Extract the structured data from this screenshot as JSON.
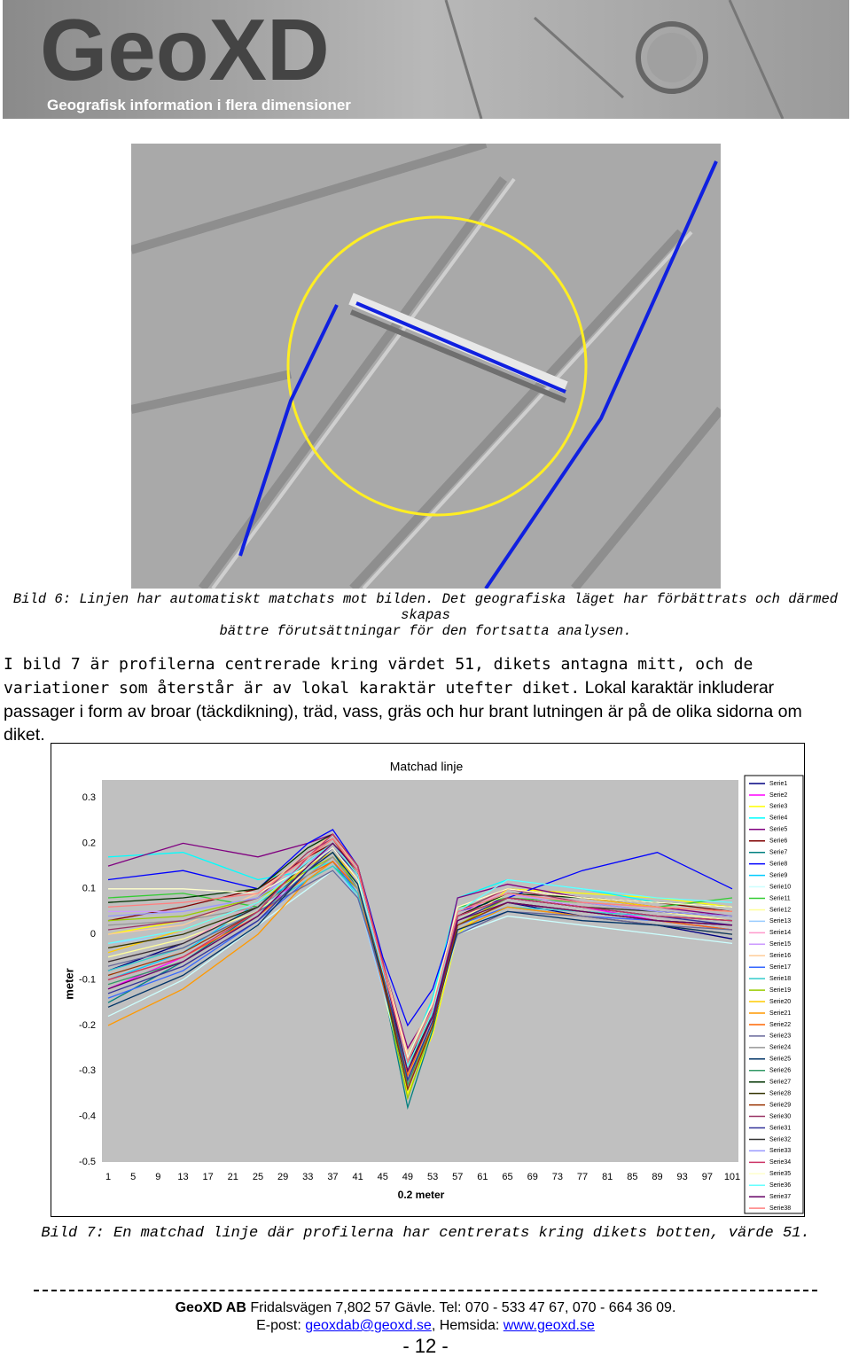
{
  "header": {
    "logo": "GeoXD",
    "tagline": "Geografisk information i flera dimensioner"
  },
  "caption1": [
    "Bild 6: Linjen har automatiskt matchats mot bilden. Det geografiska läget har förbättrats och därmed skapas",
    "bättre förutsättningar för den fortsatta analysen."
  ],
  "paragraph": {
    "part1": "I bild 7 är profilerna centrerade kring värdet 51, dikets antagna mitt, och de variationer som återstår är av lokal karaktär utefter diket.",
    "part2": "Lokal karaktär inkluderar passager i form av broar (täckdikning), träd, vass, gräs och hur brant lutningen är på de olika sidorna om diket."
  },
  "chart_data": {
    "type": "line",
    "title": "Matchad linje",
    "y_label": "meter",
    "x_label": "0.2 meter",
    "x": [
      1,
      13,
      25,
      33,
      37,
      41,
      45,
      49,
      53,
      57,
      65,
      77,
      89,
      101
    ],
    "xlim": [
      1,
      101
    ],
    "xticks": [
      1,
      5,
      9,
      13,
      17,
      21,
      25,
      29,
      33,
      37,
      41,
      45,
      49,
      53,
      57,
      61,
      65,
      69,
      73,
      77,
      81,
      85,
      89,
      93,
      97,
      101
    ],
    "ylim": [
      -0.5,
      0.3
    ],
    "yticks": [
      0.3,
      0.2,
      0.1,
      0,
      -0.1,
      -0.2,
      -0.3,
      -0.4,
      -0.5
    ],
    "grid": false,
    "background": "#c0c0c0",
    "legend": "right",
    "series": [
      {
        "name": "Serie1",
        "color": "#000080",
        "values": [
          -0.08,
          -0.02,
          0.06,
          0.16,
          0.19,
          0.12,
          -0.08,
          -0.28,
          -0.18,
          0.02,
          0.07,
          0.04,
          0.02,
          -0.01
        ]
      },
      {
        "name": "Serie2",
        "color": "#ff00ff",
        "values": [
          -0.12,
          -0.05,
          0.04,
          0.14,
          0.17,
          0.1,
          -0.1,
          -0.33,
          -0.2,
          0.05,
          0.09,
          0.06,
          0.03,
          0.01
        ]
      },
      {
        "name": "Serie3",
        "color": "#ffff00",
        "values": [
          0.0,
          0.03,
          0.08,
          0.15,
          0.18,
          0.1,
          -0.12,
          -0.35,
          -0.22,
          0.0,
          0.1,
          0.09,
          0.08,
          0.06
        ]
      },
      {
        "name": "Serie4",
        "color": "#00ffff",
        "values": [
          0.17,
          0.18,
          0.12,
          0.14,
          0.16,
          0.08,
          -0.1,
          -0.27,
          -0.14,
          0.08,
          0.12,
          0.1,
          0.07,
          0.05
        ]
      },
      {
        "name": "Serie5",
        "color": "#800080",
        "values": [
          0.15,
          0.2,
          0.17,
          0.2,
          0.22,
          0.14,
          -0.06,
          -0.25,
          -0.16,
          0.08,
          0.11,
          0.08,
          0.06,
          0.04
        ]
      },
      {
        "name": "Serie6",
        "color": "#800000",
        "values": [
          0.03,
          0.06,
          0.1,
          0.17,
          0.2,
          0.13,
          -0.09,
          -0.32,
          -0.19,
          0.06,
          0.1,
          0.08,
          0.07,
          0.05
        ]
      },
      {
        "name": "Serie7",
        "color": "#008080",
        "values": [
          -0.15,
          -0.06,
          0.05,
          0.15,
          0.18,
          0.1,
          -0.11,
          -0.38,
          -0.21,
          0.02,
          0.07,
          0.05,
          0.03,
          0.02
        ]
      },
      {
        "name": "Serie8",
        "color": "#0000ff",
        "values": [
          0.12,
          0.14,
          0.1,
          0.2,
          0.23,
          0.15,
          -0.05,
          -0.2,
          -0.12,
          0.05,
          0.08,
          0.14,
          0.18,
          0.1
        ]
      },
      {
        "name": "Serie9",
        "color": "#00ccff",
        "values": [
          -0.1,
          -0.04,
          0.07,
          0.13,
          0.16,
          0.1,
          -0.09,
          -0.3,
          -0.18,
          0.04,
          0.08,
          0.06,
          0.04,
          0.03
        ]
      },
      {
        "name": "Serie10",
        "color": "#ccffff",
        "values": [
          -0.18,
          -0.1,
          0.02,
          0.1,
          0.14,
          0.08,
          -0.12,
          -0.34,
          -0.2,
          0.0,
          0.04,
          0.02,
          0.0,
          -0.02
        ]
      },
      {
        "name": "Serie11",
        "color": "#33cc33",
        "values": [
          0.08,
          0.09,
          0.06,
          0.12,
          0.15,
          0.1,
          -0.08,
          -0.28,
          -0.16,
          0.06,
          0.08,
          0.07,
          0.06,
          0.08
        ]
      },
      {
        "name": "Serie12",
        "color": "#ffff99",
        "values": [
          -0.05,
          -0.01,
          0.05,
          0.14,
          0.17,
          0.11,
          -0.1,
          -0.31,
          -0.18,
          0.03,
          0.09,
          0.07,
          0.05,
          0.03
        ]
      },
      {
        "name": "Serie13",
        "color": "#99ccff",
        "values": [
          -0.02,
          0.0,
          0.06,
          0.12,
          0.15,
          0.08,
          -0.12,
          -0.3,
          -0.19,
          0.0,
          0.06,
          0.05,
          0.04,
          0.02
        ]
      },
      {
        "name": "Serie14",
        "color": "#ff99cc",
        "values": [
          -0.06,
          -0.02,
          0.07,
          0.16,
          0.19,
          0.12,
          -0.07,
          -0.27,
          -0.15,
          0.04,
          0.1,
          0.07,
          0.05,
          0.04
        ]
      },
      {
        "name": "Serie15",
        "color": "#cc99ff",
        "values": [
          0.05,
          0.05,
          0.08,
          0.15,
          0.2,
          0.13,
          -0.08,
          -0.29,
          -0.17,
          0.05,
          0.09,
          0.06,
          0.04,
          0.03
        ]
      },
      {
        "name": "Serie16",
        "color": "#ffcc99",
        "values": [
          0.0,
          0.02,
          0.09,
          0.18,
          0.22,
          0.14,
          -0.06,
          -0.26,
          -0.15,
          0.06,
          0.1,
          0.07,
          0.06,
          0.05
        ]
      },
      {
        "name": "Serie17",
        "color": "#3366ff",
        "values": [
          -0.14,
          -0.08,
          0.03,
          0.12,
          0.16,
          0.09,
          -0.11,
          -0.32,
          -0.19,
          0.02,
          0.06,
          0.04,
          0.03,
          0.01
        ]
      },
      {
        "name": "Serie18",
        "color": "#33cccc",
        "values": [
          -0.08,
          -0.03,
          0.05,
          0.12,
          0.15,
          0.09,
          -0.1,
          -0.3,
          -0.17,
          0.01,
          0.06,
          0.05,
          0.04,
          0.03
        ]
      },
      {
        "name": "Serie19",
        "color": "#99cc00",
        "values": [
          0.03,
          0.04,
          0.08,
          0.14,
          0.17,
          0.11,
          -0.1,
          -0.36,
          -0.2,
          0.02,
          0.08,
          0.06,
          0.05,
          0.04
        ]
      },
      {
        "name": "Serie20",
        "color": "#ffcc00",
        "values": [
          -0.04,
          0.01,
          0.07,
          0.15,
          0.18,
          0.12,
          -0.09,
          -0.29,
          -0.17,
          0.05,
          0.1,
          0.08,
          0.06,
          0.05
        ]
      },
      {
        "name": "Serie21",
        "color": "#ff9900",
        "values": [
          -0.2,
          -0.12,
          0.0,
          0.12,
          0.16,
          0.1,
          -0.1,
          -0.33,
          -0.2,
          0.01,
          0.06,
          0.04,
          0.02,
          0.0
        ]
      },
      {
        "name": "Serie22",
        "color": "#ff6600",
        "values": [
          -0.1,
          -0.05,
          0.04,
          0.13,
          0.16,
          0.1,
          -0.11,
          -0.31,
          -0.18,
          0.02,
          0.07,
          0.05,
          0.03,
          0.01
        ]
      },
      {
        "name": "Serie23",
        "color": "#666699",
        "values": [
          -0.07,
          -0.03,
          0.05,
          0.11,
          0.14,
          0.08,
          -0.1,
          -0.29,
          -0.17,
          0.0,
          0.05,
          0.04,
          0.02,
          0.01
        ]
      },
      {
        "name": "Serie24",
        "color": "#969696",
        "values": [
          0.02,
          0.03,
          0.06,
          0.13,
          0.17,
          0.1,
          -0.09,
          -0.27,
          -0.16,
          0.03,
          0.08,
          0.06,
          0.05,
          0.04
        ]
      },
      {
        "name": "Serie25",
        "color": "#003366",
        "values": [
          -0.16,
          -0.09,
          0.02,
          0.14,
          0.18,
          0.11,
          -0.1,
          -0.34,
          -0.2,
          0.01,
          0.05,
          0.03,
          0.02,
          0.0
        ]
      },
      {
        "name": "Serie26",
        "color": "#339966",
        "values": [
          -0.11,
          -0.06,
          0.04,
          0.15,
          0.19,
          0.12,
          -0.09,
          -0.33,
          -0.19,
          0.02,
          0.07,
          0.05,
          0.03,
          0.02
        ]
      },
      {
        "name": "Serie27",
        "color": "#003300",
        "values": [
          0.07,
          0.08,
          0.1,
          0.19,
          0.22,
          0.15,
          -0.06,
          -0.3,
          -0.18,
          0.04,
          0.09,
          0.08,
          0.07,
          0.06
        ]
      },
      {
        "name": "Serie28",
        "color": "#333300",
        "values": [
          -0.03,
          0.0,
          0.06,
          0.16,
          0.2,
          0.13,
          -0.08,
          -0.3,
          -0.17,
          0.03,
          0.08,
          0.06,
          0.04,
          0.03
        ]
      },
      {
        "name": "Serie29",
        "color": "#993300",
        "values": [
          -0.09,
          -0.04,
          0.05,
          0.17,
          0.21,
          0.13,
          -0.09,
          -0.34,
          -0.2,
          0.02,
          0.07,
          0.05,
          0.03,
          0.02
        ]
      },
      {
        "name": "Serie30",
        "color": "#993366",
        "values": [
          0.01,
          0.03,
          0.08,
          0.18,
          0.21,
          0.14,
          -0.07,
          -0.28,
          -0.16,
          0.05,
          0.1,
          0.07,
          0.05,
          0.04
        ]
      },
      {
        "name": "Serie31",
        "color": "#333399",
        "values": [
          -0.13,
          -0.07,
          0.03,
          0.14,
          0.19,
          0.13,
          -0.08,
          -0.32,
          -0.19,
          0.03,
          0.08,
          0.06,
          0.04,
          0.02
        ]
      },
      {
        "name": "Serie32",
        "color": "#333333",
        "values": [
          -0.06,
          -0.02,
          0.06,
          0.16,
          0.2,
          0.14,
          -0.06,
          -0.29,
          -0.17,
          0.04,
          0.08,
          0.06,
          0.05,
          0.04
        ]
      },
      {
        "name": "Serie33",
        "color": "#9999ff",
        "values": [
          0.04,
          0.05,
          0.08,
          0.16,
          0.19,
          0.12,
          -0.08,
          -0.27,
          -0.15,
          0.05,
          0.09,
          0.07,
          0.05,
          0.04
        ]
      },
      {
        "name": "Serie34",
        "color": "#cc3366",
        "values": [
          -0.1,
          -0.05,
          0.05,
          0.17,
          0.22,
          0.15,
          -0.06,
          -0.3,
          -0.18,
          0.04,
          0.08,
          0.06,
          0.04,
          0.03
        ]
      },
      {
        "name": "Serie35",
        "color": "#ffffcc",
        "values": [
          0.1,
          0.1,
          0.09,
          0.15,
          0.19,
          0.12,
          -0.07,
          -0.27,
          -0.15,
          0.06,
          0.1,
          0.08,
          0.07,
          0.06
        ]
      },
      {
        "name": "Serie36",
        "color": "#66ffff",
        "values": [
          -0.02,
          0.01,
          0.07,
          0.16,
          0.2,
          0.13,
          -0.08,
          -0.29,
          -0.17,
          0.05,
          0.12,
          0.1,
          0.08,
          0.07
        ]
      },
      {
        "name": "Serie37",
        "color": "#660066",
        "values": [
          -0.12,
          -0.06,
          0.04,
          0.15,
          0.2,
          0.14,
          -0.07,
          -0.3,
          -0.18,
          0.03,
          0.07,
          0.05,
          0.03,
          0.02
        ]
      },
      {
        "name": "Serie38",
        "color": "#ff8080",
        "values": [
          0.06,
          0.07,
          0.09,
          0.17,
          0.21,
          0.14,
          -0.07,
          -0.28,
          -0.16,
          0.05,
          0.09,
          0.07,
          0.06,
          0.05
        ]
      }
    ]
  },
  "caption2": "Bild 7: En matchad linje där profilerna har centrerats kring dikets botten, värde 51.",
  "footer": {
    "company": "GeoXD AB",
    "address": "Fridalsvägen 7,802 57 Gävle. Tel: 070 - 533 47 67, 070 - 664 36 09.",
    "email_label": "E-post:",
    "email": "geoxdab@geoxd.se",
    "web_label": ", Hemsida:",
    "web": "www.geoxd.se",
    "page": "- 12 -"
  }
}
